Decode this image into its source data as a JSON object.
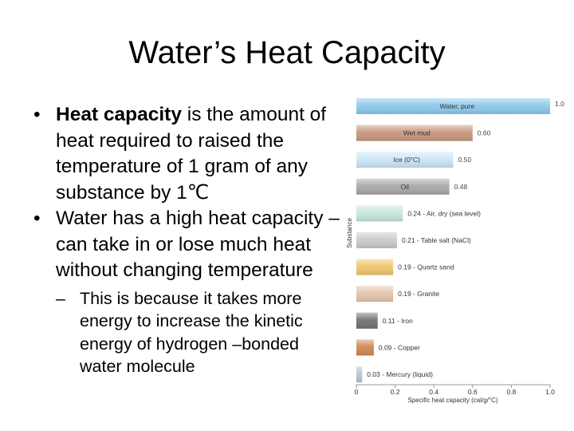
{
  "slide": {
    "title": "Water’s Heat Capacity",
    "bullet1_bold": "Heat capacity",
    "bullet1_rest": " is the amount of heat required to raised the temperature of 1 gram of any substance by 1℃",
    "bullet2": "Water has a high heat capacity – can take in or lose much heat without changing temperature",
    "sub_bullet": "This is because it takes more energy to increase the kinetic energy of hydrogen –bonded water molecule"
  },
  "chart_data": {
    "type": "bar",
    "orientation": "horizontal",
    "title": "",
    "xlabel": "Specific heat capacity (cal/g/°C)",
    "ylabel": "Substance",
    "xlim": [
      0,
      1.0
    ],
    "xticks": [
      "0",
      "0.2",
      "0.4",
      "0.6",
      "0.8",
      "1.0"
    ],
    "grid": false,
    "bars": [
      {
        "label": "Water, pure",
        "value_label": "1.0",
        "value": 1.0,
        "color": "#8ec9ec",
        "label_inside": true
      },
      {
        "label": "Wet mud",
        "value_label": "0.60",
        "value": 0.6,
        "color": "#c89880",
        "label_inside": true
      },
      {
        "label": "Ice (0°C)",
        "value_label": "0.50",
        "value": 0.5,
        "color": "#cbe6f7",
        "label_inside": true
      },
      {
        "label": "Oil",
        "value_label": "0.48",
        "value": 0.48,
        "color": "#a9a9ad",
        "label_inside": true
      },
      {
        "label": "Air, dry (sea level)",
        "value_label": "0.24 - Air, dry (sea level)",
        "value": 0.24,
        "color": "#c6e7dc",
        "label_inside": false
      },
      {
        "label": "Table salt (NaCl)",
        "value_label": "0.21 - Table salt (NaCl)",
        "value": 0.21,
        "color": "#cacacf",
        "label_inside": false
      },
      {
        "label": "Quartz sand",
        "value_label": "0.19 - Quartz sand",
        "value": 0.19,
        "color": "#efc76e",
        "label_inside": false
      },
      {
        "label": "Granite",
        "value_label": "0.19 - Granite",
        "value": 0.19,
        "color": "#e6c4ad",
        "label_inside": false
      },
      {
        "label": "Iron",
        "value_label": "0.11 - Iron",
        "value": 0.11,
        "color": "#737478",
        "label_inside": false
      },
      {
        "label": "Copper",
        "value_label": "0.09 - Copper",
        "value": 0.09,
        "color": "#cf8952",
        "label_inside": false
      },
      {
        "label": "Mercury (liquid)",
        "value_label": "0.03 - Mercury (liquid)",
        "value": 0.03,
        "color": "#b7c6d3",
        "label_inside": false
      }
    ]
  }
}
